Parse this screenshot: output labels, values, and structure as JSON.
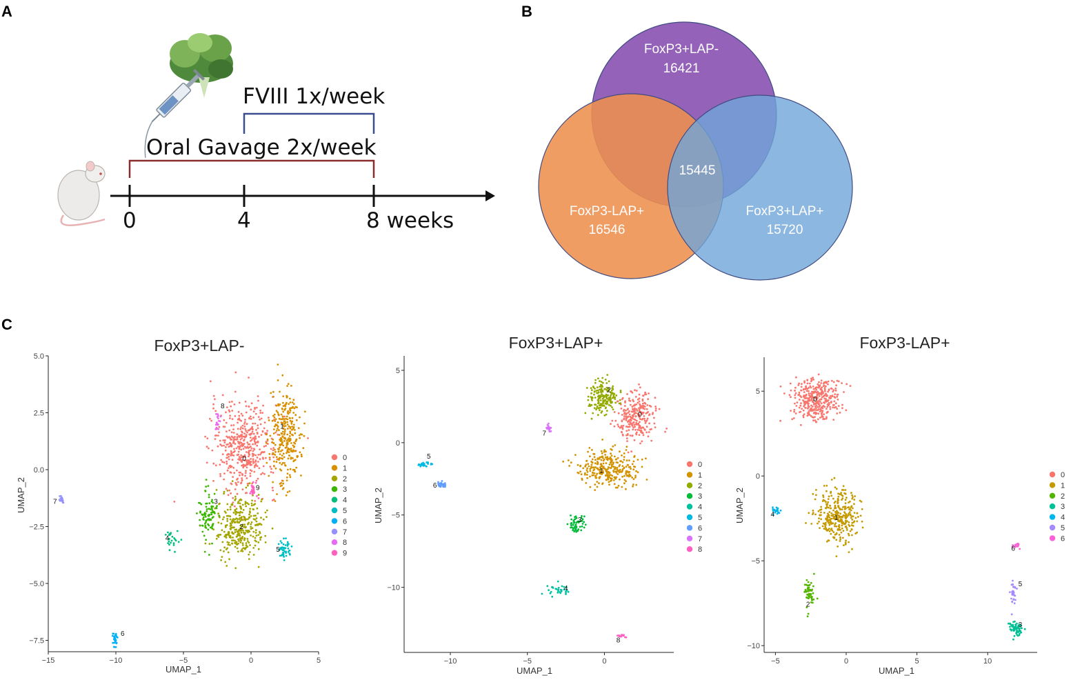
{
  "panels": {
    "a": "A",
    "b": "B",
    "c": "C"
  },
  "timeline": {
    "fviii_label": "FVIII 1x/week",
    "gavage_label": "Oral Gavage 2x/week",
    "ticks": [
      "0",
      "4",
      "8 weeks"
    ]
  },
  "venn": {
    "sets": [
      {
        "label": "FoxP3+LAP-",
        "value": "16421",
        "color": "#8e5bb5"
      },
      {
        "label": "FoxP3-LAP+",
        "value": "16546",
        "color": "#ee8f4e"
      },
      {
        "label": "FoxP3+LAP+",
        "value": "15720",
        "color": "#6fa5d8"
      }
    ],
    "intersection": "15445"
  },
  "chart_data": [
    {
      "type": "scatter",
      "title": "FoxP3+LAP-",
      "xlabel": "UMAP_1",
      "ylabel": "UMAP_2",
      "xlim": [
        -15,
        5
      ],
      "ylim": [
        -8,
        5
      ],
      "xticks": [
        -15,
        -10,
        -5,
        0,
        5
      ],
      "xtick_labels": [
        "−15",
        "−10",
        "−5",
        "0",
        "5"
      ],
      "yticks": [
        -7.5,
        -5,
        -2.5,
        0,
        2.5,
        5
      ],
      "ytick_labels": [
        "−7.5",
        "−5.0",
        "−2.5",
        "0.0",
        "2.5",
        "5.0"
      ],
      "legend": [
        "0",
        "1",
        "2",
        "3",
        "4",
        "5",
        "6",
        "7",
        "8",
        "9"
      ],
      "clusters": [
        {
          "id": "0",
          "cx": -0.5,
          "cy": 1.0,
          "sx": 2.2,
          "sy": 1.8,
          "n": 480,
          "lx": -0.5,
          "ly": 0.4
        },
        {
          "id": "1",
          "cx": 2.5,
          "cy": 1.5,
          "sx": 1.0,
          "sy": 2.0,
          "n": 300,
          "lx": 2.3,
          "ly": 1.8
        },
        {
          "id": "2",
          "cx": -0.8,
          "cy": -2.5,
          "sx": 1.6,
          "sy": 1.2,
          "n": 330,
          "lx": -0.7,
          "ly": -2.6
        },
        {
          "id": "3",
          "cx": -3.2,
          "cy": -2.0,
          "sx": 0.6,
          "sy": 1.0,
          "n": 90,
          "lx": -2.6,
          "ly": -1.5
        },
        {
          "id": "4",
          "cx": -5.8,
          "cy": -3.0,
          "sx": 0.4,
          "sy": 0.5,
          "n": 25,
          "lx": -6.2,
          "ly": -3.1
        },
        {
          "id": "5",
          "cx": 2.5,
          "cy": -3.5,
          "sx": 0.4,
          "sy": 0.4,
          "n": 45,
          "lx": 2.0,
          "ly": -3.6
        },
        {
          "id": "6",
          "cx": -10.1,
          "cy": -7.4,
          "sx": 0.15,
          "sy": 0.35,
          "n": 30,
          "lx": -9.5,
          "ly": -7.3
        },
        {
          "id": "7",
          "cx": -14.0,
          "cy": -1.3,
          "sx": 0.15,
          "sy": 0.15,
          "n": 18,
          "lx": -14.5,
          "ly": -1.5
        },
        {
          "id": "8",
          "cx": -2.5,
          "cy": 2.2,
          "sx": 0.2,
          "sy": 0.4,
          "n": 18,
          "lx": -2.1,
          "ly": 2.7
        },
        {
          "id": "9",
          "cx": 0.2,
          "cy": -0.9,
          "sx": 0.35,
          "sy": 0.3,
          "n": 22,
          "lx": 0.5,
          "ly": -0.9
        }
      ]
    },
    {
      "type": "scatter",
      "title": "FoxP3+LAP+",
      "xlabel": "UMAP_1",
      "ylabel": "UMAP_2",
      "xlim": [
        -13,
        4.5
      ],
      "ylim": [
        -14.5,
        6
      ],
      "xticks": [
        -10,
        -5,
        0
      ],
      "xtick_labels": [
        "−10",
        "−5",
        "0"
      ],
      "yticks": [
        -10,
        -5,
        0,
        5
      ],
      "ytick_labels": [
        "−10",
        "−5",
        "0",
        "5"
      ],
      "legend": [
        "0",
        "1",
        "2",
        "3",
        "4",
        "5",
        "6",
        "7",
        "8"
      ],
      "clusters": [
        {
          "id": "0",
          "cx": 2.1,
          "cy": 1.8,
          "sx": 1.2,
          "sy": 1.5,
          "n": 260,
          "lx": 2.3,
          "ly": 1.8
        },
        {
          "id": "1",
          "cx": 0.3,
          "cy": -1.8,
          "sx": 1.7,
          "sy": 1.1,
          "n": 300,
          "lx": -0.2,
          "ly": -2.1
        },
        {
          "id": "2",
          "cx": -0.1,
          "cy": 3.1,
          "sx": 0.9,
          "sy": 1.0,
          "n": 190,
          "lx": 0.3,
          "ly": 3.5
        },
        {
          "id": "3",
          "cx": -1.9,
          "cy": -5.6,
          "sx": 0.5,
          "sy": 0.6,
          "n": 55,
          "lx": -1.6,
          "ly": -5.5
        },
        {
          "id": "4",
          "cx": -3.0,
          "cy": -10.2,
          "sx": 0.7,
          "sy": 0.4,
          "n": 30,
          "lx": -2.5,
          "ly": -10.2
        },
        {
          "id": "5",
          "cx": -11.8,
          "cy": -1.5,
          "sx": 0.5,
          "sy": 0.15,
          "n": 28,
          "lx": -11.4,
          "ly": -1.1
        },
        {
          "id": "6",
          "cx": -10.6,
          "cy": -2.9,
          "sx": 0.25,
          "sy": 0.2,
          "n": 25,
          "lx": -11.0,
          "ly": -3.1
        },
        {
          "id": "7",
          "cx": -3.6,
          "cy": 0.9,
          "sx": 0.2,
          "sy": 0.3,
          "n": 18,
          "lx": -3.9,
          "ly": 0.5
        },
        {
          "id": "8",
          "cx": 1.1,
          "cy": -13.4,
          "sx": 0.25,
          "sy": 0.15,
          "n": 15,
          "lx": 0.9,
          "ly": -13.8
        }
      ]
    },
    {
      "type": "scatter",
      "title": "FoxP3-LAP+",
      "xlabel": "UMAP_1",
      "ylabel": "UMAP_2",
      "xlim": [
        -5.8,
        13.5
      ],
      "ylim": [
        -10.4,
        7
      ],
      "xticks": [
        -5,
        0,
        5,
        10
      ],
      "xtick_labels": [
        "−5",
        "0",
        "5",
        "10"
      ],
      "yticks": [
        -10,
        -5,
        0,
        5
      ],
      "ytick_labels": [
        "−10",
        "−5",
        "0",
        "5"
      ],
      "legend": [
        "0",
        "1",
        "2",
        "3",
        "4",
        "5",
        "6"
      ],
      "clusters": [
        {
          "id": "0",
          "cx": -2.2,
          "cy": 4.5,
          "sx": 1.5,
          "sy": 1.2,
          "n": 360,
          "lx": -2.2,
          "ly": 4.4
        },
        {
          "id": "1",
          "cx": -0.6,
          "cy": -2.4,
          "sx": 1.3,
          "sy": 1.4,
          "n": 330,
          "lx": -0.7,
          "ly": -2.6
        },
        {
          "id": "2",
          "cx": -2.6,
          "cy": -6.8,
          "sx": 0.3,
          "sy": 0.8,
          "n": 55,
          "lx": -2.7,
          "ly": -7.7
        },
        {
          "id": "3",
          "cx": 12.0,
          "cy": -9.0,
          "sx": 0.4,
          "sy": 0.35,
          "n": 65,
          "lx": 12.3,
          "ly": -8.9
        },
        {
          "id": "4",
          "cx": -5.0,
          "cy": -2.0,
          "sx": 0.3,
          "sy": 0.2,
          "n": 22,
          "lx": -5.2,
          "ly": -2.4
        },
        {
          "id": "5",
          "cx": 11.8,
          "cy": -6.8,
          "sx": 0.2,
          "sy": 0.7,
          "n": 30,
          "lx": 12.3,
          "ly": -6.5
        },
        {
          "id": "6",
          "cx": 12.0,
          "cy": -4.1,
          "sx": 0.3,
          "sy": 0.15,
          "n": 16,
          "lx": 11.8,
          "ly": -4.4
        }
      ]
    }
  ],
  "palettes": {
    "ten": [
      "#f8766d",
      "#d89000",
      "#a3a500",
      "#39b600",
      "#00bf7d",
      "#00bfc4",
      "#00b0f6",
      "#9590ff",
      "#e76bf3",
      "#ff62bc"
    ],
    "nine": [
      "#f8766d",
      "#d39200",
      "#93aa00",
      "#00ba38",
      "#00c19f",
      "#00b9e3",
      "#619cff",
      "#db72fb",
      "#ff61c3"
    ],
    "seven": [
      "#f8766d",
      "#c49a00",
      "#53b400",
      "#00c094",
      "#00b6eb",
      "#a58aff",
      "#fb61d7"
    ]
  }
}
